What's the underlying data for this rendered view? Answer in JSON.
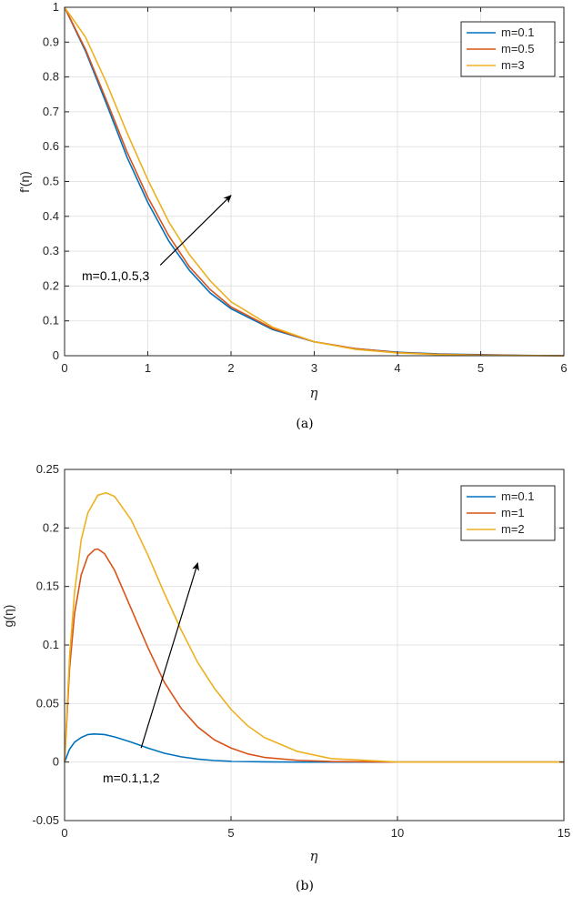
{
  "chart_data": [
    {
      "type": "line",
      "caption": "(a)",
      "xlabel": "η",
      "ylabel": "f'(η)",
      "xlim": [
        0,
        6
      ],
      "ylim": [
        0,
        1
      ],
      "xticks": [
        0,
        1,
        2,
        3,
        4,
        5,
        6
      ],
      "yticks": [
        0,
        0.1,
        0.2,
        0.3,
        0.4,
        0.5,
        0.6,
        0.7,
        0.8,
        0.9,
        1
      ],
      "grid": true,
      "legend_position": "top-right",
      "series": [
        {
          "name": "m=0.1",
          "color": "#0072BD",
          "x": [
            0,
            0.25,
            0.5,
            0.75,
            1,
            1.25,
            1.5,
            1.75,
            2,
            2.5,
            3,
            3.5,
            4,
            4.5,
            5,
            5.5,
            6
          ],
          "y": [
            1,
            0.875,
            0.725,
            0.57,
            0.44,
            0.33,
            0.245,
            0.18,
            0.135,
            0.075,
            0.04,
            0.02,
            0.01,
            0.005,
            0.003,
            0.001,
            0
          ]
        },
        {
          "name": "m=0.5",
          "color": "#D95319",
          "x": [
            0,
            0.25,
            0.5,
            0.75,
            1,
            1.25,
            1.5,
            1.75,
            2,
            2.5,
            3,
            3.5,
            4,
            4.5,
            5,
            5.5,
            6
          ],
          "y": [
            1,
            0.88,
            0.735,
            0.585,
            0.455,
            0.345,
            0.255,
            0.19,
            0.14,
            0.078,
            0.04,
            0.02,
            0.009,
            0.004,
            0.002,
            0.001,
            0
          ]
        },
        {
          "name": "m=3",
          "color": "#EDB120",
          "x": [
            0,
            0.25,
            0.5,
            0.75,
            1,
            1.25,
            1.5,
            1.75,
            2,
            2.5,
            3,
            3.5,
            4,
            4.5,
            5,
            5.5,
            6
          ],
          "y": [
            1,
            0.915,
            0.785,
            0.64,
            0.505,
            0.385,
            0.29,
            0.215,
            0.155,
            0.082,
            0.04,
            0.018,
            0.008,
            0.003,
            0.001,
            0.0005,
            0
          ]
        }
      ],
      "annotation": {
        "text": "m=0.1,0.5,3",
        "arrow_from": [
          1.15,
          0.26
        ],
        "arrow_to": [
          2.0,
          0.46
        ]
      }
    },
    {
      "type": "line",
      "caption": "(b)",
      "xlabel": "η",
      "ylabel": "g(η)",
      "xlim": [
        0,
        15
      ],
      "ylim": [
        -0.05,
        0.25
      ],
      "xticks": [
        0,
        5,
        10,
        15
      ],
      "yticks": [
        -0.05,
        0,
        0.05,
        0.1,
        0.15,
        0.2,
        0.25
      ],
      "grid": true,
      "legend_position": "top-right",
      "series": [
        {
          "name": "m=0.1",
          "color": "#0072BD",
          "x": [
            0,
            0.15,
            0.3,
            0.5,
            0.7,
            0.9,
            1.2,
            1.5,
            2,
            2.5,
            3,
            3.5,
            4,
            4.5,
            5,
            6,
            7,
            8,
            10,
            12,
            15
          ],
          "y": [
            0,
            0.011,
            0.017,
            0.021,
            0.0235,
            0.024,
            0.0235,
            0.0215,
            0.017,
            0.012,
            0.0075,
            0.0045,
            0.0025,
            0.0013,
            0.0007,
            0.0002,
            0,
            0,
            0,
            0,
            0
          ]
        },
        {
          "name": "m=1",
          "color": "#D95319",
          "x": [
            0,
            0.15,
            0.3,
            0.5,
            0.7,
            0.9,
            1.0,
            1.2,
            1.5,
            2,
            2.5,
            3,
            3.5,
            4,
            4.5,
            5,
            5.5,
            6,
            7,
            8,
            10,
            12,
            15
          ],
          "y": [
            0,
            0.08,
            0.127,
            0.16,
            0.176,
            0.1815,
            0.182,
            0.178,
            0.164,
            0.131,
            0.098,
            0.068,
            0.046,
            0.03,
            0.019,
            0.012,
            0.007,
            0.004,
            0.0015,
            0.0005,
            0,
            0,
            0
          ]
        },
        {
          "name": "m=2",
          "color": "#EDB120",
          "x": [
            0,
            0.15,
            0.3,
            0.5,
            0.7,
            1.0,
            1.25,
            1.5,
            2,
            2.5,
            3,
            3.5,
            4,
            4.5,
            5,
            5.5,
            6,
            7,
            8,
            10,
            12,
            15
          ],
          "y": [
            0,
            0.09,
            0.145,
            0.19,
            0.213,
            0.228,
            0.23,
            0.227,
            0.207,
            0.177,
            0.144,
            0.113,
            0.085,
            0.063,
            0.045,
            0.031,
            0.021,
            0.009,
            0.003,
            0,
            0,
            0
          ]
        }
      ],
      "annotation": {
        "text": "m=0.1,1,2",
        "arrow_from": [
          2.3,
          0.012
        ],
        "arrow_to": [
          4.0,
          0.17
        ]
      }
    }
  ]
}
